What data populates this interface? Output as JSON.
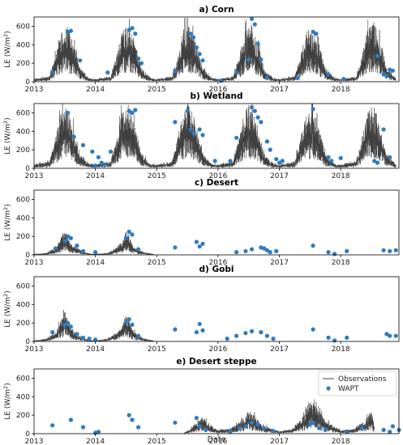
{
  "figure": {
    "xlabel": "Date",
    "x_ticks": [
      "2013",
      "2014",
      "2015",
      "2016",
      "2017",
      "2018"
    ],
    "y_ticks": [
      "0",
      "200",
      "400",
      "600"
    ],
    "legend": {
      "observations": "Observations",
      "wapt": "WAPT",
      "placement": "top-right of panel e"
    },
    "colors": {
      "observations": "#404040",
      "wapt": "#2e7bbf"
    }
  },
  "chart_data": [
    {
      "type": "line+scatter",
      "title": "a) Corn",
      "ylabel_main": "LE (W/m",
      "ylabel_sup": "2",
      "ylabel_end": ")",
      "xlim": [
        2013.0,
        2018.95
      ],
      "ylim": [
        0,
        700
      ],
      "observations": {
        "name": "Observations",
        "x": [
          2013.0,
          2013.25,
          2013.35,
          2013.45,
          2013.55,
          2013.65,
          2013.75,
          2013.9,
          2014.0,
          2014.25,
          2014.35,
          2014.45,
          2014.55,
          2014.65,
          2014.75,
          2014.9,
          2015.0,
          2015.25,
          2015.35,
          2015.45,
          2015.55,
          2015.65,
          2015.75,
          2015.9,
          2016.0,
          2016.25,
          2016.35,
          2016.45,
          2016.55,
          2016.65,
          2016.75,
          2016.9,
          2017.0,
          2017.25,
          2017.35,
          2017.45,
          2017.55,
          2017.65,
          2017.75,
          2017.9,
          2018.0,
          2018.25,
          2018.35,
          2018.45,
          2018.55,
          2018.65,
          2018.75,
          2018.9
        ],
        "y": [
          30,
          60,
          300,
          580,
          600,
          420,
          150,
          40,
          30,
          60,
          300,
          600,
          600,
          420,
          150,
          40,
          30,
          60,
          300,
          600,
          600,
          420,
          150,
          40,
          30,
          60,
          300,
          580,
          620,
          420,
          150,
          40,
          30,
          60,
          300,
          580,
          580,
          400,
          150,
          40,
          30,
          60,
          300,
          600,
          660,
          450,
          150,
          40
        ]
      },
      "wapt": {
        "name": "WAPT",
        "x": [
          2013.3,
          2013.55,
          2013.6,
          2013.75,
          2014.2,
          2014.55,
          2014.6,
          2014.65,
          2014.7,
          2014.75,
          2015.3,
          2015.55,
          2015.6,
          2015.65,
          2015.7,
          2015.75,
          2016.05,
          2016.3,
          2016.5,
          2016.55,
          2016.6,
          2016.65,
          2016.7,
          2016.8,
          2017.3,
          2017.55,
          2017.6,
          2017.8,
          2018.05,
          2018.6,
          2018.7,
          2018.75,
          2018.8,
          2018.85
        ],
        "y": [
          100,
          540,
          550,
          230,
          100,
          560,
          580,
          520,
          250,
          200,
          120,
          520,
          480,
          370,
          300,
          230,
          10,
          100,
          240,
          680,
          620,
          410,
          240,
          40,
          40,
          540,
          520,
          80,
          30,
          280,
          80,
          60,
          130,
          120
        ]
      }
    },
    {
      "type": "line+scatter",
      "title": "b) Wetland",
      "ylabel_main": "LE (W/m",
      "ylabel_sup": "2",
      "ylabel_end": ")",
      "xlim": [
        2013.0,
        2018.95
      ],
      "ylim": [
        0,
        700
      ],
      "observations": {
        "name": "Observations",
        "x": [
          2013.0,
          2013.25,
          2013.35,
          2013.45,
          2013.55,
          2013.65,
          2013.75,
          2013.9,
          2014.0,
          2014.25,
          2014.35,
          2014.45,
          2014.55,
          2014.65,
          2014.75,
          2014.9,
          2015.0,
          2015.25,
          2015.35,
          2015.45,
          2015.55,
          2015.65,
          2015.75,
          2015.9,
          2016.0,
          2016.25,
          2016.35,
          2016.45,
          2016.55,
          2016.65,
          2016.75,
          2016.9,
          2017.0,
          2017.25,
          2017.35,
          2017.45,
          2017.55,
          2017.65,
          2017.75,
          2017.9,
          2018.0,
          2018.25,
          2018.35,
          2018.45,
          2018.55,
          2018.65,
          2018.75,
          2018.9
        ],
        "y": [
          40,
          80,
          350,
          640,
          660,
          450,
          150,
          50,
          40,
          80,
          350,
          680,
          690,
          460,
          160,
          50,
          40,
          80,
          360,
          680,
          690,
          460,
          160,
          50,
          40,
          80,
          360,
          680,
          690,
          460,
          160,
          50,
          40,
          80,
          340,
          640,
          660,
          440,
          160,
          50,
          40,
          80,
          340,
          640,
          680,
          450,
          160,
          50
        ]
      },
      "wapt": {
        "name": "WAPT",
        "x": [
          2013.55,
          2013.65,
          2013.8,
          2013.95,
          2014.0,
          2014.05,
          2014.1,
          2014.15,
          2014.25,
          2014.55,
          2014.6,
          2014.65,
          2015.3,
          2015.5,
          2015.55,
          2015.6,
          2015.7,
          2015.75,
          2015.95,
          2016.2,
          2016.3,
          2016.55,
          2016.6,
          2016.65,
          2016.7,
          2016.8,
          2016.85,
          2016.95,
          2017.0,
          2017.05,
          2017.55,
          2017.8,
          2017.85,
          2018.0,
          2018.55,
          2018.6,
          2018.7,
          2018.8
        ],
        "y": [
          600,
          340,
          250,
          180,
          30,
          120,
          60,
          40,
          180,
          620,
          600,
          630,
          500,
          620,
          420,
          380,
          420,
          360,
          80,
          80,
          330,
          660,
          620,
          550,
          500,
          290,
          200,
          100,
          60,
          80,
          640,
          120,
          80,
          110,
          80,
          60,
          420,
          120
        ]
      }
    },
    {
      "type": "line+scatter",
      "title": "c) Desert",
      "ylabel_main": "LE (W/m",
      "ylabel_sup": "2",
      "ylabel_end": ")",
      "xlim": [
        2013.0,
        2018.95
      ],
      "ylim": [
        0,
        700
      ],
      "observations": {
        "name": "Observations",
        "x": [
          2013.0,
          2013.2,
          2013.35,
          2013.45,
          2013.5,
          2013.55,
          2013.6,
          2013.7,
          2013.8,
          2013.9,
          2014.0,
          2014.2,
          2014.35,
          2014.45,
          2014.5,
          2014.55,
          2014.6,
          2014.7,
          2014.8,
          2014.95
        ],
        "y": [
          10,
          20,
          80,
          200,
          300,
          180,
          120,
          80,
          40,
          15,
          10,
          20,
          80,
          160,
          280,
          220,
          120,
          60,
          30,
          10
        ]
      },
      "wapt": {
        "name": "WAPT",
        "x": [
          2013.35,
          2013.5,
          2013.55,
          2013.6,
          2013.7,
          2013.8,
          2014.0,
          2014.5,
          2014.55,
          2014.6,
          2014.7,
          2015.3,
          2015.65,
          2015.7,
          2015.75,
          2016.3,
          2016.45,
          2016.55,
          2016.7,
          2016.75,
          2016.8,
          2016.85,
          2016.95,
          2017.55,
          2017.8,
          2017.9,
          2018.1,
          2018.7,
          2018.8,
          2018.9
        ],
        "y": [
          70,
          150,
          200,
          180,
          100,
          40,
          30,
          180,
          250,
          220,
          60,
          80,
          140,
          90,
          120,
          30,
          40,
          60,
          80,
          70,
          50,
          30,
          40,
          100,
          30,
          10,
          40,
          50,
          40,
          50
        ]
      }
    },
    {
      "type": "line+scatter",
      "title": "d) Gobi",
      "ylabel_main": "LE (W/m",
      "ylabel_sup": "2",
      "ylabel_end": ")",
      "xlim": [
        2013.0,
        2018.95
      ],
      "ylim": [
        0,
        700
      ],
      "observations": {
        "name": "Observations",
        "x": [
          2013.0,
          2013.2,
          2013.35,
          2013.45,
          2013.5,
          2013.55,
          2013.6,
          2013.7,
          2013.8,
          2013.9,
          2014.0,
          2014.2,
          2014.35,
          2014.45,
          2014.5,
          2014.55,
          2014.6,
          2014.7,
          2014.8,
          2014.95
        ],
        "y": [
          10,
          30,
          100,
          260,
          380,
          240,
          140,
          80,
          40,
          15,
          10,
          30,
          100,
          200,
          320,
          240,
          140,
          70,
          30,
          10
        ]
      },
      "wapt": {
        "name": "WAPT",
        "x": [
          2013.3,
          2013.5,
          2013.55,
          2013.6,
          2013.7,
          2013.8,
          2013.9,
          2014.0,
          2014.5,
          2014.55,
          2014.6,
          2014.7,
          2015.3,
          2015.65,
          2015.7,
          2015.75,
          2016.15,
          2016.3,
          2016.45,
          2016.55,
          2016.7,
          2016.8,
          2016.9,
          2017.55,
          2017.8,
          2017.9,
          2018.1,
          2018.75,
          2018.8,
          2018.9
        ],
        "y": [
          100,
          180,
          200,
          160,
          80,
          40,
          30,
          20,
          200,
          240,
          180,
          60,
          130,
          100,
          190,
          120,
          30,
          60,
          90,
          110,
          100,
          60,
          30,
          130,
          40,
          10,
          40,
          80,
          60,
          60
        ]
      }
    },
    {
      "type": "line+scatter",
      "title": "e) Desert steppe",
      "ylabel_main": "LE (W/m",
      "ylabel_sup": "2",
      "ylabel_end": ")",
      "xlim": [
        2013.0,
        2018.95
      ],
      "ylim": [
        0,
        700
      ],
      "observations": {
        "name": "Observations",
        "x": [
          2015.45,
          2015.6,
          2015.75,
          2015.85,
          2016.0,
          2016.2,
          2016.4,
          2016.5,
          2016.6,
          2016.7,
          2016.85,
          2017.0,
          2017.2,
          2017.4,
          2017.5,
          2017.6,
          2017.7,
          2017.85,
          2018.0,
          2018.2,
          2018.4,
          2018.5,
          2018.55
        ],
        "y": [
          10,
          80,
          200,
          100,
          40,
          60,
          150,
          260,
          200,
          120,
          60,
          30,
          50,
          200,
          380,
          300,
          200,
          100,
          40,
          50,
          150,
          250,
          100
        ]
      },
      "wapt": {
        "name": "WAPT",
        "x": [
          2013.3,
          2013.6,
          2013.8,
          2014.0,
          2014.05,
          2014.55,
          2014.6,
          2014.7,
          2015.3,
          2015.65,
          2015.7,
          2015.8,
          2016.2,
          2016.35,
          2016.45,
          2016.55,
          2016.65,
          2016.75,
          2016.9,
          2017.5,
          2017.55,
          2017.65,
          2017.75,
          2018.1,
          2018.35,
          2018.7,
          2018.8,
          2018.85,
          2018.95
        ],
        "y": [
          90,
          150,
          70,
          10,
          20,
          200,
          150,
          70,
          120,
          170,
          80,
          40,
          20,
          60,
          80,
          120,
          100,
          60,
          30,
          100,
          120,
          60,
          40,
          20,
          60,
          40,
          20,
          80,
          40
        ]
      }
    }
  ]
}
